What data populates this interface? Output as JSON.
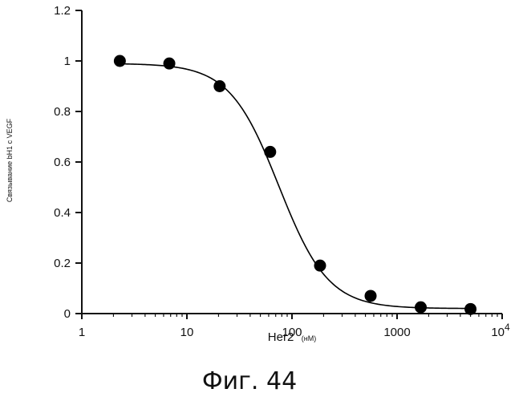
{
  "chart_data": {
    "type": "scatter",
    "title": "",
    "xlabel": "Her2",
    "xlabel_unit": "(нМ)",
    "ylabel": "Связывание bH1 с VEGF",
    "x_scale": "log",
    "xlim": [
      1,
      10000
    ],
    "ylim": [
      0,
      1.2
    ],
    "x_ticks": [
      {
        "value": 1,
        "label": "1"
      },
      {
        "value": 10,
        "label": "10"
      },
      {
        "value": 100,
        "label": "100"
      },
      {
        "value": 1000,
        "label": "1000"
      }
    ],
    "x_tick_last": {
      "value": 10000,
      "base": "10",
      "exp": "4"
    },
    "y_ticks": [
      {
        "value": 0,
        "label": "0"
      },
      {
        "value": 0.2,
        "label": "0.2"
      },
      {
        "value": 0.4,
        "label": "0.4"
      },
      {
        "value": 0.6,
        "label": "0.6"
      },
      {
        "value": 0.8,
        "label": "0.8"
      },
      {
        "value": 1,
        "label": "1"
      },
      {
        "value": 1.2,
        "label": "1.2"
      }
    ],
    "series": [
      {
        "points": [
          {
            "x": 2.3,
            "y": 1.0
          },
          {
            "x": 6.8,
            "y": 0.99
          },
          {
            "x": 20.5,
            "y": 0.9
          },
          {
            "x": 62,
            "y": 0.64
          },
          {
            "x": 185,
            "y": 0.19
          },
          {
            "x": 560,
            "y": 0.07
          },
          {
            "x": 1680,
            "y": 0.025
          },
          {
            "x": 5000,
            "y": 0.018
          }
        ]
      }
    ],
    "fit_curve": {
      "type": "sigmoid",
      "top": 0.99,
      "bottom": 0.02,
      "ic50": 75,
      "hill": 1.85
    },
    "grid": false,
    "legend": "none"
  },
  "caption": "Фиг. 44",
  "colors": {
    "axis": "#111111",
    "marker": "#000000",
    "curve": "#000000"
  }
}
